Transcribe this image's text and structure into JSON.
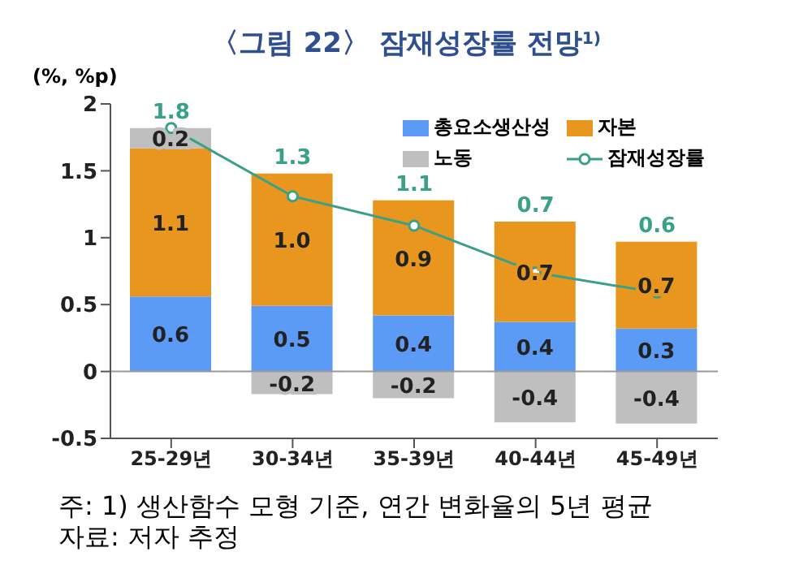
{
  "chart_data": {
    "type": "bar",
    "title": "〈그림 22〉 잠재성장률 전망$^{1)}$",
    "ylabel": "(%, %p)",
    "categories": [
      "25-29년",
      "30-34년",
      "35-39년",
      "40-44년",
      "45-49년"
    ],
    "stacked": true,
    "series": [
      {
        "name": "총요소생산성",
        "color": "#5b9bf5",
        "values": [
          0.56,
          0.49,
          0.42,
          0.37,
          0.32
        ],
        "value_labels": [
          "0.6",
          "0.5",
          "0.4",
          "0.4",
          "0.3"
        ]
      },
      {
        "name": "자본",
        "color": "#e8961e",
        "values": [
          1.11,
          0.99,
          0.86,
          0.75,
          0.65
        ],
        "value_labels": [
          "1.1",
          "1.0",
          "0.9",
          "0.7",
          "0.7"
        ]
      },
      {
        "name": "노동",
        "color": "#bfbfbf",
        "values": [
          0.15,
          -0.17,
          -0.2,
          -0.38,
          -0.39
        ],
        "value_labels": [
          "0.2",
          "-0.2",
          "-0.2",
          "-0.4",
          "-0.4"
        ]
      },
      {
        "name": "잠재성장률",
        "type": "line",
        "color": "#3aa08a",
        "values": [
          1.82,
          1.31,
          1.09,
          0.74,
          0.59
        ],
        "value_labels": [
          "1.8",
          "1.3",
          "1.1",
          "0.7",
          "0.6"
        ]
      }
    ],
    "ylim": [
      -0.5,
      2
    ],
    "yticks": [
      -0.5,
      0,
      0.5,
      1,
      1.5,
      2
    ],
    "ref_lines": [
      {
        "axis": "y",
        "value": 0,
        "color": "#999999"
      }
    ],
    "marker": "circle",
    "legend": "top right",
    "grid": false,
    "annotations": [
      "주: 1) 생산함수 모형 기준, 연간 변화율의 5년 평균",
      "자료: 저자 추정"
    ]
  }
}
